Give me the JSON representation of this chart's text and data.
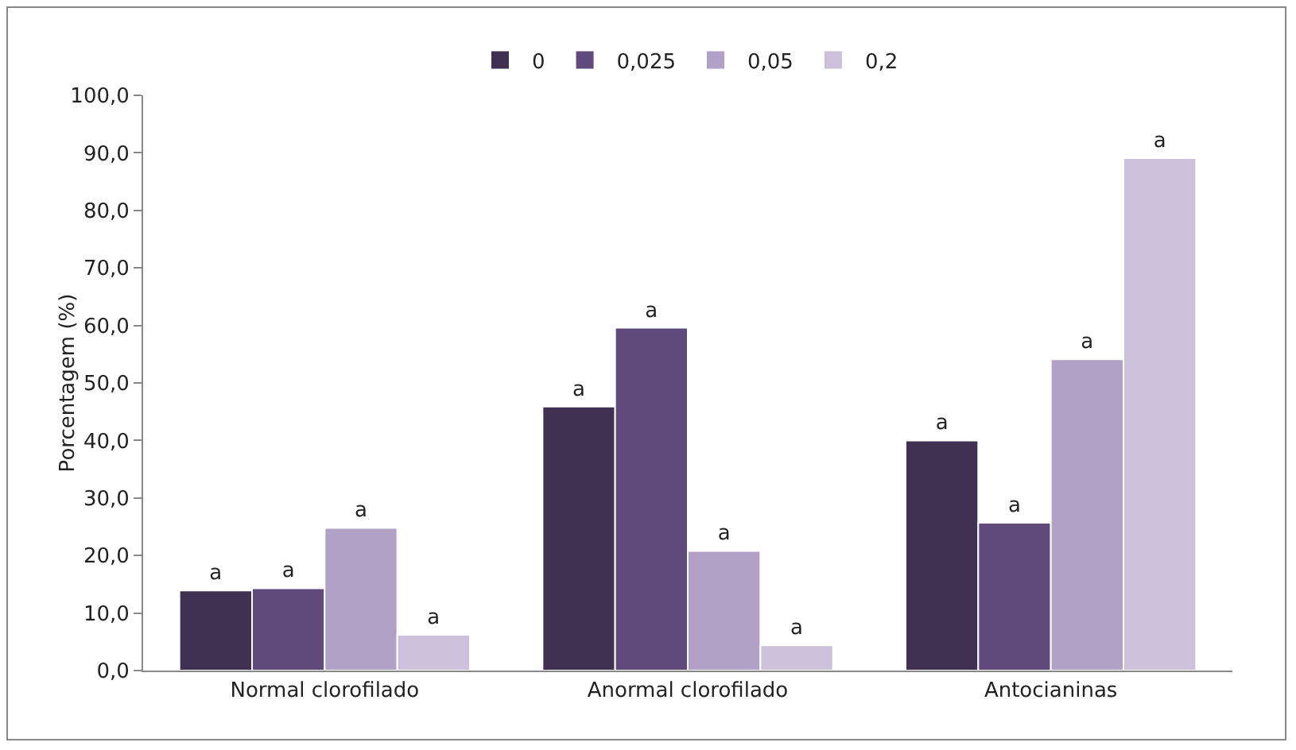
{
  "chart_data": {
    "type": "bar",
    "ylabel": "Porcentagem (%)",
    "categories": [
      "Normal clorofilado",
      "Anormal clorofilado",
      "Antocianinas"
    ],
    "series": [
      {
        "name": "0",
        "color": "#403152",
        "values": [
          13.9,
          45.9,
          40.0
        ],
        "value_labels": [
          "a",
          "a",
          "a"
        ]
      },
      {
        "name": "0,025",
        "color": "#604a7b",
        "values": [
          14.3,
          59.6,
          25.7
        ],
        "value_labels": [
          "a",
          "a",
          "a"
        ]
      },
      {
        "name": "0,05",
        "color": "#b2a1c7",
        "values": [
          24.8,
          20.8,
          54.1
        ],
        "value_labels": [
          "a",
          "a",
          "a"
        ]
      },
      {
        "name": "0,2",
        "color": "#ccc1da",
        "values": [
          6.2,
          4.4,
          89.1
        ],
        "value_labels": [
          "a",
          "a",
          "a"
        ]
      }
    ],
    "ylim": [
      0,
      100
    ],
    "yticks": [
      {
        "value": 0,
        "label": "0,0"
      },
      {
        "value": 10,
        "label": "10,0"
      },
      {
        "value": 20,
        "label": "20,0"
      },
      {
        "value": 30,
        "label": "30,0"
      },
      {
        "value": 40,
        "label": "40,0"
      },
      {
        "value": 50,
        "label": "50,0"
      },
      {
        "value": 60,
        "label": "60,0"
      },
      {
        "value": 70,
        "label": "70,0"
      },
      {
        "value": 80,
        "label": "80,0"
      },
      {
        "value": 90,
        "label": "90,0"
      },
      {
        "value": 100,
        "label": "100,0"
      }
    ],
    "grid": false,
    "legend": "top"
  }
}
